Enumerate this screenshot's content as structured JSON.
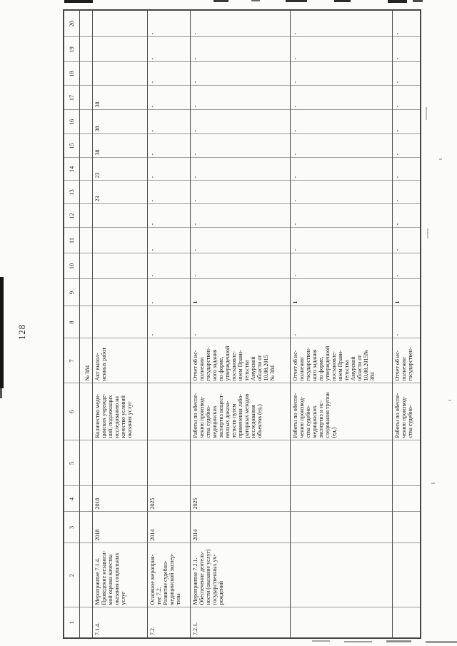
{
  "page": {
    "number": "128"
  },
  "table": {
    "columns": [
      "1",
      "2",
      "3",
      "4",
      "5",
      "6",
      "7",
      "8",
      "9",
      "10",
      "11",
      "12",
      "13",
      "14",
      "15",
      "16",
      "17",
      "18",
      "19",
      "20"
    ],
    "rows": [
      {
        "name": "row-continuation",
        "cells": [
          "",
          "",
          "",
          "",
          "",
          "",
          "№ 384",
          "",
          "",
          "",
          "",
          "",
          "",
          "",
          "",
          "",
          "",
          "",
          "",
          ""
        ],
        "bold_cols": []
      },
      {
        "name": "row-7-1-4",
        "cells": [
          "7.1.4.",
          "Мероприятие 7.1.4.\nПроведение независи-\nмой оценки качества\nоказания социальных\nуслуг",
          "2018",
          "2018",
          "",
          "Количество меди-\nцинских учрежде-\nний, подлежащих\nисследованию на\nкачество условий\nоказания услуг",
          "Акт выпол-\nненных работ",
          "",
          "",
          "",
          "",
          "",
          "23",
          "23",
          "38",
          "38",
          "38",
          "",
          "",
          ""
        ],
        "bold_cols": []
      },
      {
        "name": "row-7-2",
        "cells": [
          "7.2.",
          "Основное мероприя-\nтие 7.2.\nРазвитие судебно-\nмедицинской экспер-\nтизы",
          "2014",
          "2025",
          "",
          "",
          "",
          "-",
          "-",
          "-",
          "-",
          "-",
          "-",
          "-",
          "-",
          "-",
          "-",
          "-",
          "-",
          "-"
        ],
        "bold_cols": []
      },
      {
        "name": "row-7-2-1",
        "cells": [
          "7.2.1.",
          "Мероприятие 7.2.1.\nОбеспечение деятель-\nности (оказание услуг)\nгосударственных уч-\nреждений",
          "2014",
          "2025",
          "",
          "Работы по обеспе-\nчению производ-\nства судебно-\nмедицинских\nэкспертиз вещест-\nвенных доказа-\nтельств путем\nприменения лабо-\nраторных методов\nисследования\nобъектов (ед.)",
          "Отчет об ис-\nполнении\nгосударствен-\nного задания\nпо форме,\nутвержденной\nпостановле-\nнием Прави-\nтельства\nАмурской\nобласти от\n10.08.2015\n№ 384",
          "-",
          "1",
          "-",
          "-",
          "-",
          "-",
          "-",
          "-",
          "-",
          "-",
          "-",
          "-",
          "-"
        ],
        "bold_cols": [
          9
        ]
      },
      {
        "name": "row-work-trupov",
        "cells": [
          "",
          "",
          "",
          "",
          "",
          "Работы по обеспе-\nчению производ-\nства судебно-\nмедицинских\nэкспертиз и ис-\nследования трупов\n(ед.)",
          "Отчет об ис-\nполнении\nгосударствен-\nного задания\nпо форме,\nутвержденной\nпостановле-\nнием Прави-\nтельства\nАмурской\nобласти от\n10.08.2015№\n384",
          "-",
          "1",
          "-",
          "-",
          "-",
          "-",
          "-",
          "-",
          "-",
          "-",
          "-",
          "-",
          "-"
        ],
        "bold_cols": [
          9
        ]
      },
      {
        "name": "row-work-cut",
        "cells": [
          "",
          "",
          "",
          "",
          "",
          "Работы по обеспе-\nчению производ-\nства судебно-",
          "Отчет об ис-\nполнении\nгосударствен-",
          "-",
          "1",
          "-",
          "-",
          "-",
          "-",
          "-",
          "-",
          "-",
          "-",
          "-",
          "-",
          "-"
        ],
        "bold_cols": [
          9
        ]
      }
    ]
  }
}
